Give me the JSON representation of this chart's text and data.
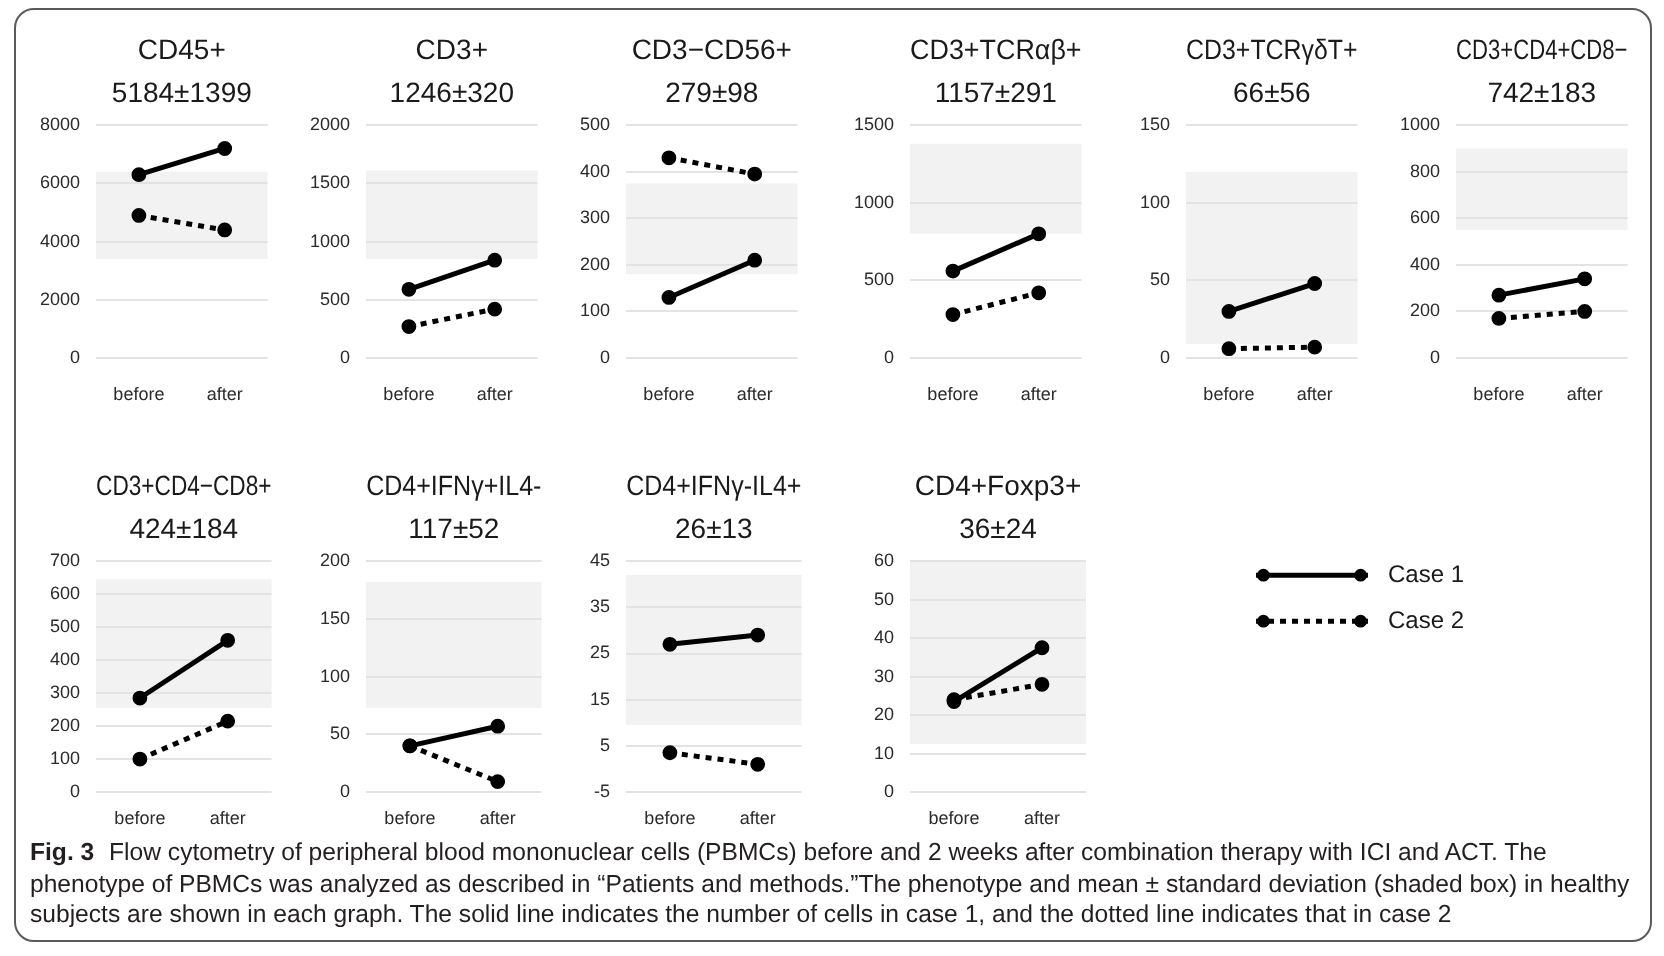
{
  "chart_data": [
    {
      "type": "line",
      "title": "CD45+",
      "subtitle": "5184±1399",
      "categories": [
        "before",
        "after"
      ],
      "series": [
        {
          "color": "#000000",
          "line_style": "solid",
          "values": [
            6300,
            7200
          ]
        },
        {
          "color": "#000000",
          "line_style": "dotted",
          "values": [
            4900,
            4400
          ]
        }
      ],
      "ylim": [
        0,
        8000
      ],
      "yticks": [
        0,
        2000,
        4000,
        6000,
        8000
      ],
      "grid": "y",
      "marker": "circle",
      "bands": [
        {
          "axis": "y",
          "from": 3400,
          "to": 6400,
          "color": "#f2f2f2"
        }
      ]
    },
    {
      "type": "line",
      "title": "CD3+",
      "subtitle": "1246±320",
      "categories": [
        "before",
        "after"
      ],
      "series": [
        {
          "color": "#000000",
          "line_style": "solid",
          "values": [
            590,
            840
          ]
        },
        {
          "color": "#000000",
          "line_style": "dotted",
          "values": [
            270,
            420
          ]
        }
      ],
      "ylim": [
        0,
        2000
      ],
      "yticks": [
        0,
        500,
        1000,
        1500,
        2000
      ],
      "grid": "y",
      "marker": "circle",
      "bands": [
        {
          "axis": "y",
          "from": 850,
          "to": 1610,
          "color": "#f2f2f2"
        }
      ]
    },
    {
      "type": "line",
      "title": "CD3−CD56+",
      "subtitle": "279±98",
      "categories": [
        "before",
        "after"
      ],
      "series": [
        {
          "color": "#000000",
          "line_style": "solid",
          "values": [
            130,
            210
          ]
        },
        {
          "color": "#000000",
          "line_style": "dotted",
          "values": [
            430,
            395
          ]
        }
      ],
      "ylim": [
        0,
        500
      ],
      "yticks": [
        0,
        100,
        200,
        300,
        400,
        500
      ],
      "grid": "y",
      "marker": "circle",
      "bands": [
        {
          "axis": "y",
          "from": 180,
          "to": 375,
          "color": "#f2f2f2"
        }
      ]
    },
    {
      "type": "line",
      "title": "CD3+TCRαβ+",
      "subtitle": "1157±291",
      "categories": [
        "before",
        "after"
      ],
      "series": [
        {
          "color": "#000000",
          "line_style": "solid",
          "values": [
            560,
            800
          ]
        },
        {
          "color": "#000000",
          "line_style": "dotted",
          "values": [
            280,
            420
          ]
        }
      ],
      "ylim": [
        0,
        1500
      ],
      "yticks": [
        0,
        500,
        1000,
        1500
      ],
      "grid": "y",
      "marker": "circle",
      "bands": [
        {
          "axis": "y",
          "from": 800,
          "to": 1380,
          "color": "#f2f2f2"
        }
      ]
    },
    {
      "type": "line",
      "title": "CD3+TCRγδT+",
      "subtitle": "66±56",
      "categories": [
        "before",
        "after"
      ],
      "series": [
        {
          "color": "#000000",
          "line_style": "solid",
          "values": [
            30,
            48
          ]
        },
        {
          "color": "#000000",
          "line_style": "dotted",
          "values": [
            6,
            7
          ]
        }
      ],
      "ylim": [
        0,
        150
      ],
      "yticks": [
        0,
        50,
        100,
        150
      ],
      "grid": "y",
      "marker": "circle",
      "bands": [
        {
          "axis": "y",
          "from": 9,
          "to": 120,
          "color": "#f2f2f2"
        }
      ]
    },
    {
      "type": "line",
      "title": "CD3+CD4+CD8−",
      "subtitle": "742±183",
      "categories": [
        "before",
        "after"
      ],
      "series": [
        {
          "color": "#000000",
          "line_style": "solid",
          "values": [
            270,
            340
          ]
        },
        {
          "color": "#000000",
          "line_style": "dotted",
          "values": [
            170,
            200
          ]
        }
      ],
      "ylim": [
        0,
        1000
      ],
      "yticks": [
        0,
        200,
        400,
        600,
        800,
        1000
      ],
      "grid": "y",
      "marker": "circle",
      "bands": [
        {
          "axis": "y",
          "from": 550,
          "to": 900,
          "color": "#f2f2f2"
        }
      ]
    },
    {
      "type": "line",
      "title": "CD3+CD4−CD8+",
      "subtitle": "424±184",
      "categories": [
        "before",
        "after"
      ],
      "series": [
        {
          "color": "#000000",
          "line_style": "solid",
          "values": [
            285,
            460
          ]
        },
        {
          "color": "#000000",
          "line_style": "dotted",
          "values": [
            100,
            215
          ]
        }
      ],
      "ylim": [
        0,
        700
      ],
      "yticks": [
        0,
        100,
        200,
        300,
        400,
        500,
        600,
        700
      ],
      "grid": "y",
      "marker": "circle",
      "bands": [
        {
          "axis": "y",
          "from": 255,
          "to": 645,
          "color": "#f2f2f2"
        }
      ]
    },
    {
      "type": "line",
      "title": "CD4+IFNγ+IL4-",
      "subtitle": "117±52",
      "categories": [
        "before",
        "after"
      ],
      "series": [
        {
          "color": "#000000",
          "line_style": "solid",
          "values": [
            40,
            57
          ]
        },
        {
          "color": "#000000",
          "line_style": "dotted",
          "values": [
            40,
            9
          ]
        }
      ],
      "ylim": [
        0,
        200
      ],
      "yticks": [
        0,
        50,
        100,
        150,
        200
      ],
      "grid": "y",
      "marker": "circle",
      "bands": [
        {
          "axis": "y",
          "from": 73,
          "to": 182,
          "color": "#f2f2f2"
        }
      ]
    },
    {
      "type": "line",
      "title": "CD4+IFNγ-IL4+",
      "subtitle": "26±13",
      "categories": [
        "before",
        "after"
      ],
      "series": [
        {
          "color": "#000000",
          "line_style": "solid",
          "values": [
            27,
            29
          ]
        },
        {
          "color": "#000000",
          "line_style": "dotted",
          "values": [
            3.5,
            1
          ]
        }
      ],
      "ylim": [
        -5,
        45
      ],
      "yticks": [
        -5,
        5,
        15,
        25,
        35,
        45
      ],
      "grid": "y",
      "marker": "circle",
      "bands": [
        {
          "axis": "y",
          "from": 9.5,
          "to": 42,
          "color": "#f2f2f2"
        }
      ]
    },
    {
      "type": "line",
      "title": "CD4+Foxp3+",
      "subtitle": "36±24",
      "categories": [
        "before",
        "after"
      ],
      "series": [
        {
          "name": "Case 1",
          "color": "#000000",
          "line_style": "solid",
          "values": [
            23.5,
            37.5
          ]
        },
        {
          "name": "Case 2",
          "color": "#000000",
          "line_style": "dotted",
          "values": [
            24,
            28
          ]
        }
      ],
      "ylim": [
        0,
        60
      ],
      "yticks": [
        0,
        10,
        20,
        30,
        40,
        50,
        60
      ],
      "grid": "y",
      "marker": "circle",
      "legend": "right",
      "bands": [
        {
          "axis": "y",
          "from": 12.5,
          "to": 60,
          "color": "#f2f2f2"
        }
      ],
      "annotations": [
        "Fig. 3",
        "Flow cytometry of peripheral blood mononuclear cells (PBMCs) before and 2 weeks after combination therapy with ICI and ACT. The phenotype of PBMCs was analyzed as described in “Patients and methods.”The phenotype and mean ± standard deviation (shaded box) in healthy subjects are shown in each graph. The solid line indicates the number of cells in case 1, and the dotted line indicates that in case 2"
      ]
    }
  ]
}
